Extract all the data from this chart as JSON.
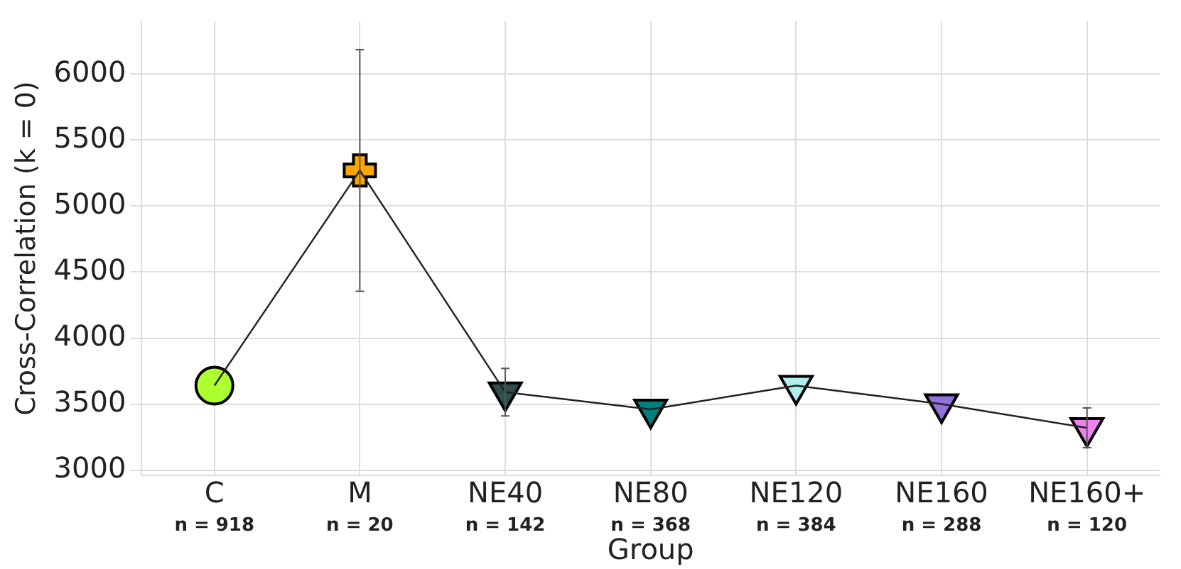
{
  "chart_data": {
    "type": "line",
    "xlabel": "Group",
    "ylabel": "Cross-Correlation (k = 0)",
    "categories": [
      "C\nn = 918",
      "M\nn = 20",
      "NE40\nn = 142",
      "NE80\nn = 368",
      "NE120\nn = 384",
      "NE160\nn = 288",
      "NE160+\nn = 120"
    ],
    "series": [
      {
        "color": "#222222",
        "marker": "none",
        "values": [
          3640,
          5270,
          3590,
          3460,
          3640,
          3500,
          3320
        ],
        "errors": [
          null,
          915,
          180,
          null,
          null,
          null,
          150
        ]
      },
      {
        "type": "scatter",
        "marker": "circle",
        "values": [
          3640,
          null,
          null,
          null,
          null,
          null,
          null
        ],
        "colors": [
          "#adff2f",
          null,
          null,
          null,
          null,
          null,
          null
        ]
      },
      {
        "type": "scatter",
        "marker": "cross",
        "values": [
          null,
          5270,
          null,
          null,
          null,
          null,
          null
        ],
        "colors": [
          null,
          "#ffa500",
          null,
          null,
          null,
          null,
          null
        ]
      },
      {
        "type": "scatter",
        "marker": "triangle",
        "values": [
          null,
          null,
          3590,
          3460,
          3640,
          3500,
          3320
        ],
        "colors": [
          null,
          null,
          "#2f4f4f",
          "#008080",
          "#afeeee",
          "#9370db",
          "#ee82ee"
        ]
      }
    ],
    "ylim": [
      2960,
      6400
    ],
    "yticks": [
      3000,
      3500,
      4000,
      4500,
      5000,
      5500,
      6000
    ],
    "grid": true,
    "legend": false
  }
}
